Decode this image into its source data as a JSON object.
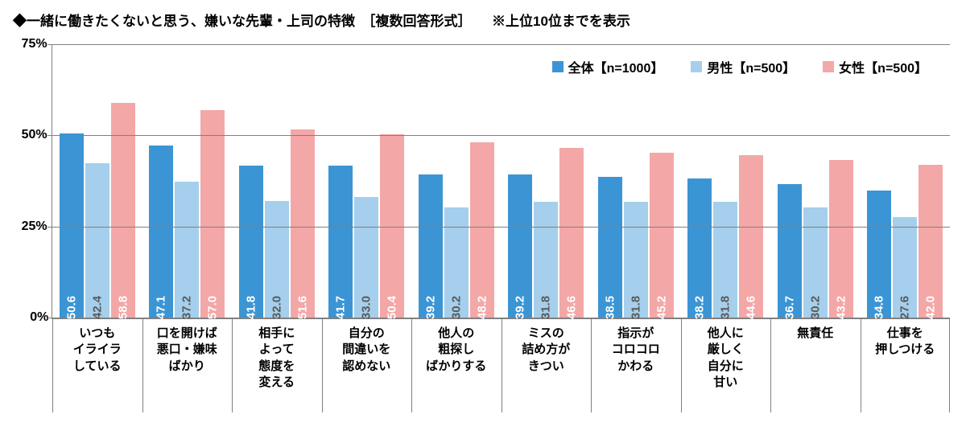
{
  "title": "◆一緒に働きたくないと思う、嫌いな先輩・上司の特徴　［複数回答形式］　　※上位10位までを表示",
  "chart": {
    "type": "bar",
    "ymax": 75,
    "yticks": [
      0,
      25,
      50,
      75
    ],
    "ytick_labels": [
      "0%",
      "25%",
      "50%",
      "75%"
    ],
    "grid_color": "#808080",
    "background_color": "#ffffff",
    "series": [
      {
        "name": "全体【n=1000】",
        "color": "#3b95d4",
        "label_color": "#ffffff"
      },
      {
        "name": "男性【n=500】",
        "color": "#a5cfec",
        "label_color": "#5a5a5a"
      },
      {
        "name": "女性【n=500】",
        "color": "#f4a7a7",
        "label_color": "#ffffff"
      }
    ],
    "categories": [
      {
        "label": "いつも\nイライラ\nしている",
        "values": [
          50.6,
          42.4,
          58.8
        ]
      },
      {
        "label": "口を開けば\n悪口・嫌味\nばかり",
        "values": [
          47.1,
          37.2,
          57.0
        ]
      },
      {
        "label": "相手に\nよって\n態度を\n変える",
        "values": [
          41.8,
          32.0,
          51.6
        ]
      },
      {
        "label": "自分の\n間違いを\n認めない",
        "values": [
          41.7,
          33.0,
          50.4
        ]
      },
      {
        "label": "他人の\n粗探し\nばかりする",
        "values": [
          39.2,
          30.2,
          48.2
        ]
      },
      {
        "label": "ミスの\n詰め方が\nきつい",
        "values": [
          39.2,
          31.8,
          46.6
        ]
      },
      {
        "label": "指示が\nコロコロ\nかわる",
        "values": [
          38.5,
          31.8,
          45.2
        ]
      },
      {
        "label": "他人に\n厳しく\n自分に\n甘い",
        "values": [
          38.2,
          31.8,
          44.6
        ]
      },
      {
        "label": "無責任",
        "values": [
          36.7,
          30.2,
          43.2
        ]
      },
      {
        "label": "仕事を\n押しつける",
        "values": [
          34.8,
          27.6,
          42.0
        ]
      }
    ]
  }
}
